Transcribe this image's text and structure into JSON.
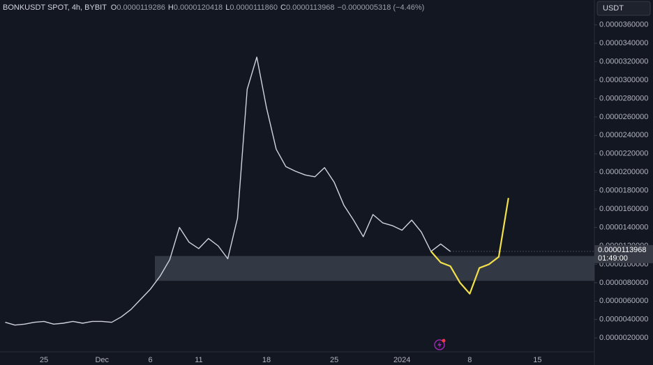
{
  "header": {
    "symbol": "BONKUSDT SPOT, 4h, BYBIT",
    "o_label": "O",
    "open": "0.0000119286",
    "h_label": "H",
    "high": "0.0000120418",
    "l_label": "L",
    "low": "0.0000111860",
    "c_label": "C",
    "close": "0.0000113968",
    "change": "−0.0000005318 (−4.46%)"
  },
  "currency": "USDT",
  "last_price_label": "0.0000113968",
  "countdown": "01:49:00",
  "chart_data": {
    "type": "line",
    "categories": [
      null,
      null,
      null,
      null,
      "25",
      null,
      null,
      null,
      null,
      null,
      "Dec",
      null,
      null,
      null,
      null,
      "6",
      null,
      null,
      null,
      null,
      "11",
      null,
      null,
      null,
      null,
      null,
      null,
      "18",
      null,
      null,
      null,
      null,
      null,
      null,
      "25",
      null,
      null,
      null,
      null,
      null,
      null,
      "2024",
      null,
      null,
      null,
      null,
      null,
      null,
      "8",
      null,
      null,
      null,
      null,
      null,
      null,
      "15",
      null,
      null,
      null,
      null,
      null
    ],
    "series": [
      {
        "color": "#d1d4dc",
        "values": [
          3.7e-06,
          3.4e-06,
          3.5e-06,
          3.7e-06,
          3.8e-06,
          3.5e-06,
          3.6e-06,
          3.8e-06,
          3.6e-06,
          3.8e-06,
          3.8e-06,
          3.7e-06,
          4.3e-06,
          5.1e-06,
          6.2e-06,
          7.3e-06,
          8.7e-06,
          1.05e-05,
          1.4e-05,
          1.24e-05,
          1.17e-05,
          1.28e-05,
          1.2e-05,
          1.06e-05,
          1.5e-05,
          2.9e-05,
          3.25e-05,
          2.7e-05,
          2.25e-05,
          2.06e-05,
          2.01e-05,
          1.97e-05,
          1.95e-05,
          2.05e-05,
          1.89e-05,
          1.64e-05,
          1.48e-05,
          1.3e-05,
          1.54e-05,
          1.45e-05,
          1.42e-05,
          1.37e-05,
          1.48e-05,
          1.35e-05,
          1.14e-05,
          1.22e-05,
          1.14e-05,
          null,
          null,
          null,
          null,
          null,
          null,
          null,
          null,
          null,
          null,
          null,
          null,
          null,
          null
        ]
      },
      {
        "color": "#f2e14a",
        "values": [
          null,
          null,
          null,
          null,
          null,
          null,
          null,
          null,
          null,
          null,
          null,
          null,
          null,
          null,
          null,
          null,
          null,
          null,
          null,
          null,
          null,
          null,
          null,
          null,
          null,
          null,
          null,
          null,
          null,
          null,
          null,
          null,
          null,
          null,
          null,
          null,
          null,
          null,
          null,
          null,
          null,
          null,
          null,
          null,
          1.14e-05,
          1.02e-05,
          9.8e-06,
          8e-06,
          6.8e-06,
          9.6e-06,
          1e-05,
          1.08e-05,
          1.72e-05,
          null,
          null,
          null,
          null,
          null,
          null,
          null,
          null
        ]
      }
    ],
    "zone": {
      "low": 8.2e-06,
      "high": 1.09e-05,
      "color": "#3a3e4b"
    },
    "ylim": [
      5e-07,
      3.87e-05
    ],
    "yticks": [
      {
        "value": 2e-06,
        "label": "0.0000020000"
      },
      {
        "value": 4e-06,
        "label": "0.0000040000"
      },
      {
        "value": 6e-06,
        "label": "0.0000060000"
      },
      {
        "value": 8e-06,
        "label": "0.0000080000"
      },
      {
        "value": 1e-05,
        "label": "0.0000100000"
      },
      {
        "value": 1.2e-05,
        "label": "0.0000120000"
      },
      {
        "value": 1.4e-05,
        "label": "0.0000140000"
      },
      {
        "value": 1.6e-05,
        "label": "0.0000160000"
      },
      {
        "value": 1.8e-05,
        "label": "0.0000180000"
      },
      {
        "value": 2e-05,
        "label": "0.0000200000"
      },
      {
        "value": 2.2e-05,
        "label": "0.0000220000"
      },
      {
        "value": 2.4e-05,
        "label": "0.0000240000"
      },
      {
        "value": 2.6e-05,
        "label": "0.0000260000"
      },
      {
        "value": 2.8e-05,
        "label": "0.0000280000"
      },
      {
        "value": 3e-05,
        "label": "0.0000300000"
      },
      {
        "value": 3.2e-05,
        "label": "0.0000320000"
      },
      {
        "value": 3.4e-05,
        "label": "0.0000340000"
      },
      {
        "value": 3.6e-05,
        "label": "0.0000360000"
      }
    ]
  }
}
